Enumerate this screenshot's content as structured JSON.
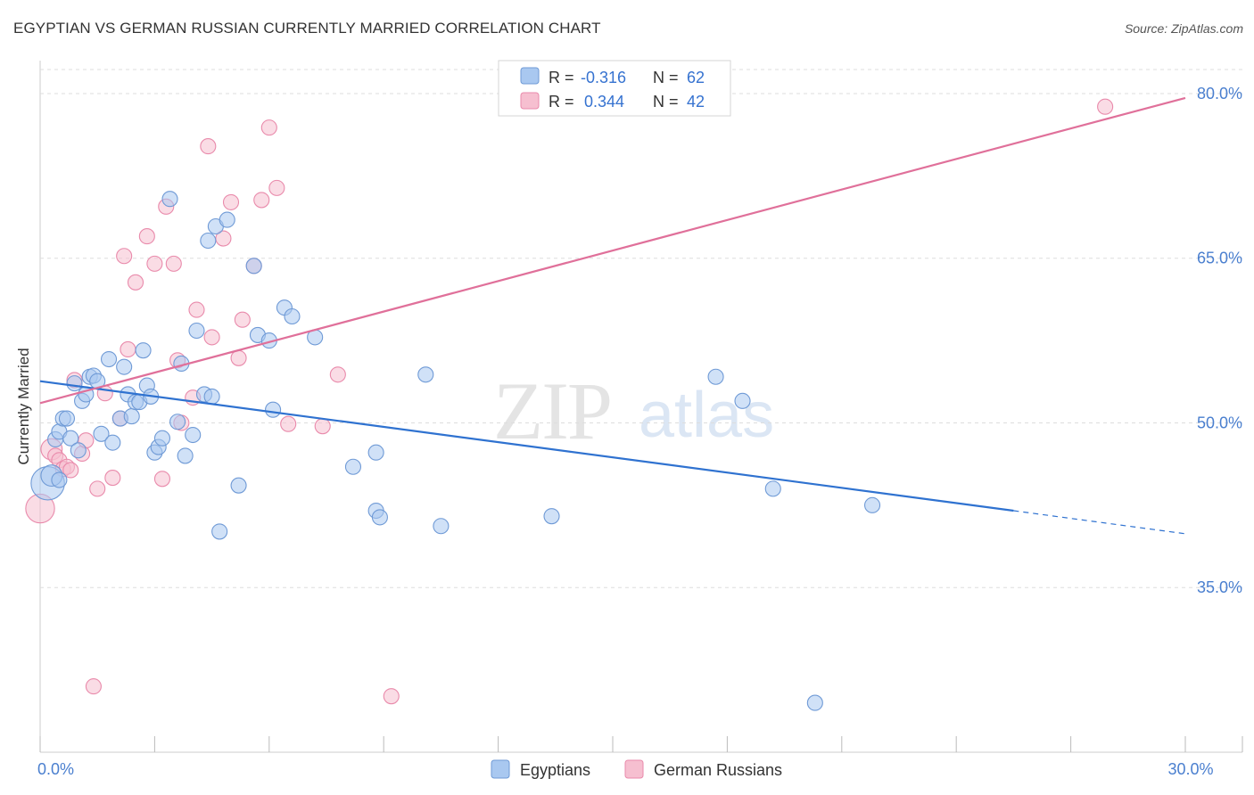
{
  "header": {
    "title": "EGYPTIAN VS GERMAN RUSSIAN CURRENTLY MARRIED CORRELATION CHART",
    "source": "Source: ZipAtlas.com"
  },
  "watermark": {
    "zip": "ZIP",
    "atlas": "atlas"
  },
  "colors": {
    "blue_fill": "#a9c8f0",
    "blue_stroke": "#6f9ad6",
    "blue_line": "#2f72d0",
    "pink_fill": "#f6bfd0",
    "pink_stroke": "#e98aab",
    "pink_line": "#e0709a",
    "axis_label": "#4a7fcf",
    "grid": "#dddddd"
  },
  "legend": {
    "rows": [
      {
        "r_label": "R =",
        "r_value": "-0.316",
        "n_label": "N =",
        "n_value": "62"
      },
      {
        "r_label": "R =",
        "r_value": "0.344",
        "n_label": "N =",
        "n_value": "42"
      }
    ]
  },
  "chart_data": {
    "type": "scatter",
    "title": "EGYPTIAN VS GERMAN RUSSIAN CURRENTLY MARRIED CORRELATION CHART",
    "ylabel": "Currently Married",
    "xlabel": "",
    "xlim": [
      0,
      30
    ],
    "ylim": [
      20,
      83
    ],
    "x_tick_labels": [
      {
        "value": 0,
        "label": "0.0%"
      },
      {
        "value": 30,
        "label": "30.0%"
      }
    ],
    "y_tick_labels": [
      {
        "value": 35,
        "label": "35.0%"
      },
      {
        "value": 50,
        "label": "50.0%"
      },
      {
        "value": 65,
        "label": "65.0%"
      },
      {
        "value": 80,
        "label": "80.0%"
      }
    ],
    "bottom_legend": [
      "Egyptians",
      "German Russians"
    ],
    "series": [
      {
        "name": "Egyptians",
        "r": -0.316,
        "n": 62,
        "trend": {
          "x0": 0,
          "y0": 53.8,
          "x1": 25.5,
          "y1": 42.0,
          "dash_to_x": 30,
          "dash_to_y": 39.9
        },
        "points": [
          [
            0.2,
            44.5,
            2.2
          ],
          [
            0.3,
            45.2,
            1.4
          ],
          [
            0.4,
            48.5,
            1
          ],
          [
            0.5,
            44.8,
            1
          ],
          [
            0.5,
            49.2,
            1
          ],
          [
            0.6,
            50.4,
            1
          ],
          [
            0.7,
            50.4,
            1
          ],
          [
            0.8,
            48.6,
            1
          ],
          [
            0.9,
            53.6,
            1
          ],
          [
            1.0,
            47.5,
            1
          ],
          [
            1.1,
            52.0,
            1
          ],
          [
            1.2,
            52.6,
            1
          ],
          [
            1.3,
            54.2,
            1
          ],
          [
            1.4,
            54.3,
            1
          ],
          [
            1.5,
            53.8,
            1
          ],
          [
            1.6,
            49.0,
            1
          ],
          [
            1.8,
            55.8,
            1
          ],
          [
            1.9,
            48.2,
            1
          ],
          [
            2.1,
            50.4,
            1
          ],
          [
            2.2,
            55.1,
            1
          ],
          [
            2.3,
            52.6,
            1
          ],
          [
            2.4,
            50.6,
            1
          ],
          [
            2.5,
            51.9,
            1
          ],
          [
            2.6,
            51.9,
            1
          ],
          [
            2.7,
            56.6,
            1
          ],
          [
            2.8,
            53.4,
            1
          ],
          [
            2.9,
            52.4,
            1
          ],
          [
            3.0,
            47.3,
            1
          ],
          [
            3.1,
            47.8,
            1
          ],
          [
            3.2,
            48.6,
            1
          ],
          [
            3.4,
            70.4,
            1
          ],
          [
            3.6,
            50.1,
            1
          ],
          [
            3.7,
            55.4,
            1
          ],
          [
            3.8,
            47.0,
            1
          ],
          [
            4.0,
            48.9,
            1
          ],
          [
            4.1,
            58.4,
            1
          ],
          [
            4.3,
            52.6,
            1
          ],
          [
            4.4,
            66.6,
            1
          ],
          [
            4.5,
            52.4,
            1
          ],
          [
            4.6,
            67.9,
            1
          ],
          [
            4.7,
            40.1,
            1
          ],
          [
            4.9,
            68.5,
            1
          ],
          [
            5.2,
            44.3,
            1
          ],
          [
            5.6,
            64.3,
            1
          ],
          [
            5.7,
            58.0,
            1
          ],
          [
            6.0,
            57.5,
            1
          ],
          [
            6.1,
            51.2,
            1
          ],
          [
            6.4,
            60.5,
            1
          ],
          [
            6.6,
            59.7,
            1
          ],
          [
            7.2,
            57.8,
            1
          ],
          [
            8.2,
            46.0,
            1
          ],
          [
            8.8,
            47.3,
            1
          ],
          [
            8.8,
            42.0,
            1
          ],
          [
            8.9,
            41.4,
            1
          ],
          [
            10.1,
            54.4,
            1
          ],
          [
            10.5,
            40.6,
            1
          ],
          [
            13.4,
            41.5,
            1
          ],
          [
            17.7,
            54.2,
            1
          ],
          [
            18.4,
            52.0,
            1
          ],
          [
            19.2,
            44.0,
            1
          ],
          [
            21.8,
            42.5,
            1
          ],
          [
            20.3,
            24.5,
            1
          ]
        ]
      },
      {
        "name": "German Russians",
        "r": 0.344,
        "n": 42,
        "trend": {
          "x0": 0,
          "y0": 51.8,
          "x1": 30,
          "y1": 79.6
        },
        "points": [
          [
            0.0,
            42.2,
            1.9
          ],
          [
            0.3,
            47.6,
            1.4
          ],
          [
            0.4,
            47.0,
            1
          ],
          [
            0.5,
            46.6,
            1
          ],
          [
            0.6,
            45.8,
            1
          ],
          [
            0.7,
            46.0,
            1
          ],
          [
            0.8,
            45.7,
            1
          ],
          [
            0.9,
            53.9,
            1
          ],
          [
            1.1,
            47.2,
            1
          ],
          [
            1.2,
            48.4,
            1
          ],
          [
            1.4,
            26.0,
            1
          ],
          [
            1.5,
            44.0,
            1
          ],
          [
            1.7,
            52.7,
            1
          ],
          [
            1.9,
            45.0,
            1
          ],
          [
            2.1,
            50.4,
            1
          ],
          [
            2.2,
            65.2,
            1
          ],
          [
            2.3,
            56.7,
            1
          ],
          [
            2.5,
            62.8,
            1
          ],
          [
            2.8,
            67.0,
            1
          ],
          [
            3.0,
            64.5,
            1
          ],
          [
            3.2,
            44.9,
            1
          ],
          [
            3.3,
            69.7,
            1
          ],
          [
            3.5,
            64.5,
            1
          ],
          [
            3.6,
            55.7,
            1
          ],
          [
            3.7,
            50.0,
            1
          ],
          [
            4.0,
            52.3,
            1
          ],
          [
            4.1,
            60.3,
            1
          ],
          [
            4.4,
            75.2,
            1
          ],
          [
            4.5,
            57.8,
            1
          ],
          [
            4.8,
            66.8,
            1
          ],
          [
            5.0,
            70.1,
            1
          ],
          [
            5.2,
            55.9,
            1
          ],
          [
            5.3,
            59.4,
            1
          ],
          [
            5.6,
            64.3,
            1
          ],
          [
            5.8,
            70.3,
            1
          ],
          [
            6.0,
            76.9,
            1
          ],
          [
            6.2,
            71.4,
            1
          ],
          [
            6.5,
            49.9,
            1
          ],
          [
            7.4,
            49.7,
            1
          ],
          [
            7.8,
            54.4,
            1
          ],
          [
            9.2,
            25.1,
            1
          ],
          [
            27.9,
            78.8,
            1
          ]
        ]
      }
    ]
  }
}
